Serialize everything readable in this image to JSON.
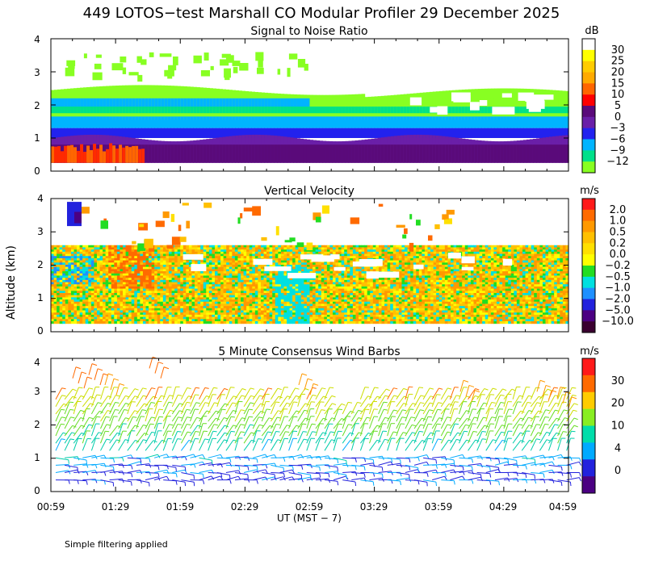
{
  "page": {
    "title": "449 LOTOS−test Marshall CO Modular Profiler 29 December 2025",
    "ylabel": "Altitude (km)",
    "xlabel": "UT  (MST − 7)",
    "footnote": "Simple filtering applied",
    "x_ticks": [
      "00:59",
      "01:29",
      "01:59",
      "02:29",
      "02:59",
      "03:29",
      "03:59",
      "04:29",
      "04:59"
    ],
    "y_ticks": [
      "0",
      "1",
      "2",
      "3",
      "4"
    ]
  },
  "chart_data": [
    {
      "id": "snr",
      "type": "heatmap",
      "title": "Signal to Noise Ratio",
      "xlabel": "UT  (MST − 7)",
      "ylabel": "Altitude (km)",
      "x_range_hours": [
        0.983,
        4.983
      ],
      "ylim": [
        0,
        4
      ],
      "colorbar": {
        "unit": "dB",
        "labels": [
          "30",
          "25",
          "20",
          "15",
          "10",
          "5",
          "0",
          "−3",
          "−6",
          "−9",
          "−12"
        ],
        "colors": [
          "#ffffff",
          "#ffff00",
          "#ffcc00",
          "#ffaa00",
          "#ff6600",
          "#ff0000",
          "#5a0a7a",
          "#6a1fa8",
          "#2222ee",
          "#00b4ff",
          "#00e08a",
          "#88ff22"
        ]
      },
      "layers": [
        {
          "altitude_km_from": 0.25,
          "altitude_km_to": 0.55,
          "description_value": "5 to 15 dB near ground early"
        },
        {
          "altitude_km_from": 0.3,
          "altitude_km_to": 1.0,
          "value_db": 2
        },
        {
          "altitude_km_from": 1.0,
          "altitude_km_to": 1.3,
          "value_db": -4
        },
        {
          "altitude_km_from": 1.3,
          "altitude_km_to": 1.6,
          "value_db": -8
        },
        {
          "altitude_km_from": 1.6,
          "altitude_km_to": 2.6,
          "value_db": -11
        }
      ]
    },
    {
      "id": "vv",
      "type": "heatmap",
      "title": "Vertical Velocity",
      "xlabel": "UT  (MST − 7)",
      "ylabel": "Altitude (km)",
      "ylim": [
        0,
        4
      ],
      "colorbar": {
        "unit": "m/s",
        "labels": [
          "2.0",
          "1.0",
          "0.5",
          "0.2",
          "0.0",
          "−0.2",
          "−0.5",
          "−1.0",
          "−2.0",
          "−5.0",
          "−10.0"
        ],
        "colors": [
          "#ff1a1a",
          "#ff6a00",
          "#ff9900",
          "#ffc000",
          "#ffe000",
          "#ffff00",
          "#22dd22",
          "#00e0e0",
          "#1e90ff",
          "#2222dd",
          "#4b0082",
          "#3a0030"
        ]
      },
      "data_altitude_range_km": [
        0.25,
        2.6
      ]
    },
    {
      "id": "wind",
      "type": "scatter",
      "title": "5 Minute Consensus Wind Barbs",
      "xlabel": "UT  (MST − 7)",
      "ylabel": "Altitude (km)",
      "ylim": [
        0,
        4
      ],
      "colorbar": {
        "unit": "m/s",
        "labels": [
          "30",
          "20",
          "10",
          "4",
          "0"
        ],
        "colors": [
          "#ff1a1a",
          "#ff6a00",
          "#ffcc00",
          "#88ee22",
          "#00ddaa",
          "#00aaff",
          "#2222dd",
          "#4b0082"
        ]
      },
      "speed_profile": [
        {
          "altitude_km": 0.5,
          "speed_ms": 3
        },
        {
          "altitude_km": 1.0,
          "speed_ms": 5
        },
        {
          "altitude_km": 1.5,
          "speed_ms": 9
        },
        {
          "altitude_km": 2.0,
          "speed_ms": 12
        },
        {
          "altitude_km": 2.5,
          "speed_ms": 14
        },
        {
          "altitude_km": 3.0,
          "speed_ms": 20
        }
      ]
    }
  ]
}
